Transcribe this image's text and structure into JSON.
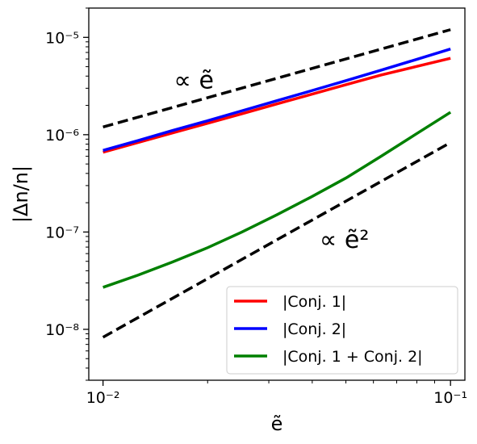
{
  "chart_data": {
    "type": "line",
    "xscale": "log",
    "yscale": "log",
    "xlim": [
      0.0091,
      0.11
    ],
    "ylim": [
      3e-09,
      2e-05
    ],
    "xlabel": "ẽ",
    "ylabel": "|Δn/n|",
    "grid": false,
    "legend_position": "lower-right",
    "x": [
      0.01,
      0.0126,
      0.0158,
      0.02,
      0.0251,
      0.0316,
      0.0398,
      0.0501,
      0.0631,
      0.0794,
      0.1
    ],
    "series": [
      {
        "name": "|Conj. 1|",
        "color": "#ff0000",
        "linestyle": "solid",
        "values": [
          6.6e-07,
          8.3e-07,
          1.04e-06,
          1.31e-06,
          1.64e-06,
          2.07e-06,
          2.6e-06,
          3.27e-06,
          4.1e-06,
          5e-06,
          6.1e-06
        ]
      },
      {
        "name": "|Conj. 2|",
        "color": "#0000ff",
        "linestyle": "solid",
        "values": [
          6.9e-07,
          8.7e-07,
          1.1e-06,
          1.39e-06,
          1.76e-06,
          2.23e-06,
          2.83e-06,
          3.6e-06,
          4.6e-06,
          5.9e-06,
          7.6e-06
        ]
      },
      {
        "name": "|Conj. 1 + Conj. 2|",
        "color": "#008000",
        "linestyle": "solid",
        "values": [
          2.7e-08,
          3.6e-08,
          4.9e-08,
          6.9e-08,
          1e-07,
          1.5e-07,
          2.3e-07,
          3.6e-07,
          6e-07,
          1.01e-06,
          1.7e-06
        ]
      },
      {
        "color": "#000000",
        "linestyle": "dashed",
        "values_endpoints": {
          "x": [
            0.01,
            0.1
          ],
          "y": [
            1.2e-06,
            1.2e-05
          ]
        }
      },
      {
        "color": "#000000",
        "linestyle": "dashed",
        "values_endpoints": {
          "x": [
            0.01,
            0.1
          ],
          "y": [
            8.3e-09,
            8.3e-07
          ]
        }
      }
    ],
    "annotations": [
      {
        "text": "∝ ẽ",
        "x": 0.016,
        "y": 3.9e-06
      },
      {
        "text": "∝ ẽ²",
        "x": 0.042,
        "y": 9e-08
      }
    ],
    "x_ticks": [
      {
        "value": 0.01,
        "label": "10⁻²"
      },
      {
        "value": 0.1,
        "label": "10⁻¹"
      }
    ],
    "y_ticks": [
      {
        "value": 1e-08,
        "label": "10⁻⁸"
      },
      {
        "value": 1e-07,
        "label": "10⁻⁷"
      },
      {
        "value": 1e-06,
        "label": "10⁻⁶"
      },
      {
        "value": 1e-05,
        "label": "10⁻⁵"
      }
    ]
  }
}
